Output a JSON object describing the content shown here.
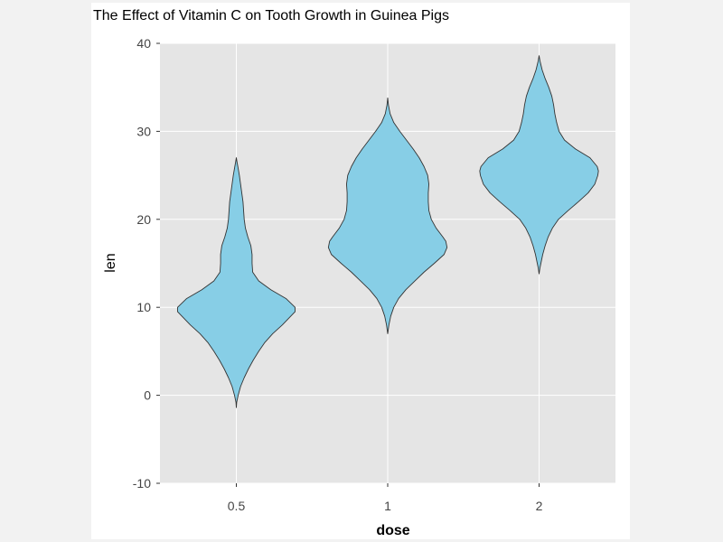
{
  "chart_data": {
    "type": "violin",
    "title": "The Effect of Vitamin C on Tooth Growth in Guinea Pigs",
    "xlabel": "dose",
    "ylabel": "len",
    "categories": [
      "0.5",
      "1",
      "2"
    ],
    "ylim": [
      -10,
      40
    ],
    "yticks": [
      -10,
      0,
      10,
      20,
      30,
      40
    ],
    "grid": true,
    "fill_color": "#87CEE6",
    "outline_color": "#333333",
    "panel_background": "#E5E5E5",
    "violins": [
      {
        "category": "0.5",
        "min": -1.4,
        "max": 27.0,
        "density": [
          [
            -1.4,
            0.0
          ],
          [
            -0.8,
            0.006
          ],
          [
            0.0,
            0.03
          ],
          [
            1.0,
            0.07
          ],
          [
            2.0,
            0.13
          ],
          [
            3.0,
            0.2
          ],
          [
            4.0,
            0.28
          ],
          [
            5.0,
            0.37
          ],
          [
            6.0,
            0.47
          ],
          [
            7.0,
            0.6
          ],
          [
            8.0,
            0.76
          ],
          [
            9.0,
            0.9
          ],
          [
            9.5,
            0.97
          ],
          [
            10.0,
            0.97
          ],
          [
            11.0,
            0.82
          ],
          [
            12.0,
            0.57
          ],
          [
            13.0,
            0.37
          ],
          [
            14.0,
            0.27
          ],
          [
            15.0,
            0.26
          ],
          [
            16.0,
            0.26
          ],
          [
            17.0,
            0.24
          ],
          [
            18.0,
            0.19
          ],
          [
            19.0,
            0.15
          ],
          [
            20.0,
            0.13
          ],
          [
            21.0,
            0.12
          ],
          [
            22.0,
            0.11
          ],
          [
            23.0,
            0.09
          ],
          [
            24.0,
            0.07
          ],
          [
            25.0,
            0.05
          ],
          [
            26.0,
            0.025
          ],
          [
            26.5,
            0.012
          ],
          [
            27.0,
            0.0
          ]
        ]
      },
      {
        "category": "1",
        "min": 7.0,
        "max": 33.8,
        "density": [
          [
            7.0,
            0.0
          ],
          [
            8.0,
            0.02
          ],
          [
            9.0,
            0.05
          ],
          [
            10.0,
            0.1
          ],
          [
            11.0,
            0.18
          ],
          [
            12.0,
            0.3
          ],
          [
            13.0,
            0.45
          ],
          [
            14.0,
            0.6
          ],
          [
            15.0,
            0.77
          ],
          [
            16.0,
            0.93
          ],
          [
            16.8,
            0.98
          ],
          [
            17.5,
            0.96
          ],
          [
            18.0,
            0.91
          ],
          [
            19.0,
            0.8
          ],
          [
            20.0,
            0.72
          ],
          [
            21.0,
            0.68
          ],
          [
            22.0,
            0.67
          ],
          [
            23.0,
            0.67
          ],
          [
            24.0,
            0.68
          ],
          [
            25.0,
            0.66
          ],
          [
            26.0,
            0.6
          ],
          [
            27.0,
            0.52
          ],
          [
            28.0,
            0.42
          ],
          [
            29.0,
            0.31
          ],
          [
            30.0,
            0.2
          ],
          [
            31.0,
            0.1
          ],
          [
            32.0,
            0.04
          ],
          [
            33.0,
            0.012
          ],
          [
            33.8,
            0.0
          ]
        ]
      },
      {
        "category": "2",
        "min": 13.8,
        "max": 38.6,
        "density": [
          [
            13.8,
            0.0
          ],
          [
            14.5,
            0.015
          ],
          [
            15.0,
            0.03
          ],
          [
            16.0,
            0.06
          ],
          [
            17.0,
            0.1
          ],
          [
            18.0,
            0.15
          ],
          [
            19.0,
            0.22
          ],
          [
            20.0,
            0.32
          ],
          [
            21.0,
            0.48
          ],
          [
            22.0,
            0.65
          ],
          [
            23.0,
            0.81
          ],
          [
            24.0,
            0.92
          ],
          [
            25.0,
            0.97
          ],
          [
            25.5,
            0.98
          ],
          [
            26.0,
            0.96
          ],
          [
            27.0,
            0.84
          ],
          [
            28.0,
            0.6
          ],
          [
            29.0,
            0.42
          ],
          [
            30.0,
            0.33
          ],
          [
            31.0,
            0.29
          ],
          [
            32.0,
            0.26
          ],
          [
            33.0,
            0.24
          ],
          [
            34.0,
            0.21
          ],
          [
            35.0,
            0.16
          ],
          [
            36.0,
            0.1
          ],
          [
            37.0,
            0.05
          ],
          [
            38.0,
            0.015
          ],
          [
            38.6,
            0.0
          ]
        ]
      }
    ]
  }
}
